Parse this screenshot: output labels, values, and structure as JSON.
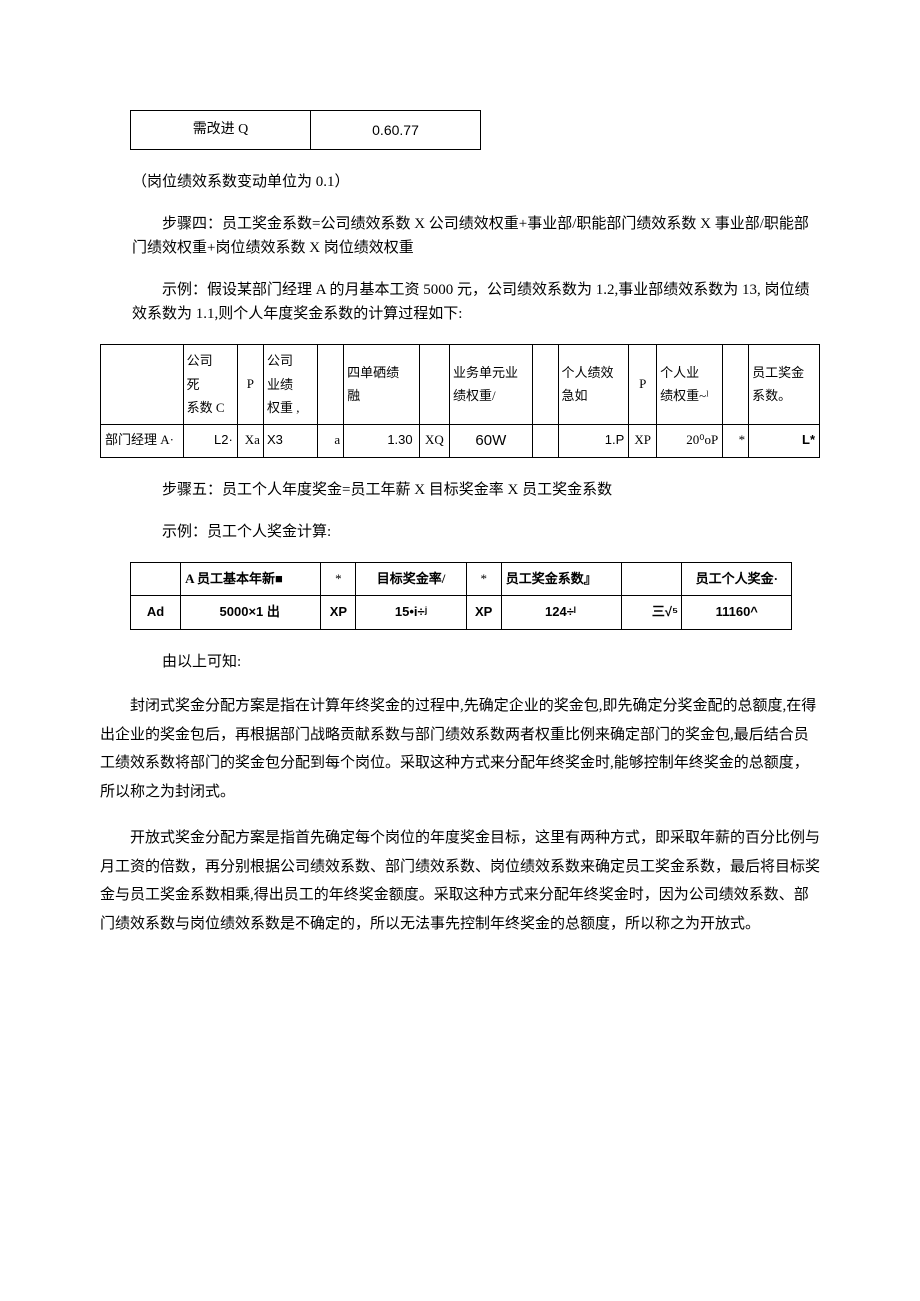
{
  "topTable": {
    "col1": "需改进 Q",
    "col2": "0.60.77"
  },
  "paragraphs": {
    "p1": "（岗位绩效系数变动单位为 0.1）",
    "p2": "步骤四：员工奖金系数=公司绩效系数 X 公司绩效权重+事业部/职能部门绩效系数 X 事业部/职能部门绩效权重+岗位绩效系数 X 岗位绩效权重",
    "p3": "示例：假设某部门经理 A 的月基本工资 5000 元，公司绩效系数为 1.2,事业部绩效系数为 13, 岗位绩效系数为 1.1,则个人年度奖金系数的计算过程如下:",
    "p4": "步骤五：员工个人年度奖金=员工年薪 X 目标奖金率 X 员工奖金系数",
    "p5": "示例：员工个人奖金计算:",
    "p6": "由以上可知:",
    "p7": "封闭式奖金分配方案是指在计算年终奖金的过程中,先确定企业的奖金包,即先确定分奖金配的总额度,在得出企业的奖金包后，再根据部门战略贡献系数与部门绩效系数两者权重比例来确定部门的奖金包,最后结合员工绩效系数将部门的奖金包分配到每个岗位。采取这种方式来分配年终奖金时,能够控制年终奖金的总额度，所以称之为封闭式。",
    "p8": "开放式奖金分配方案是指首先确定每个岗位的年度奖金目标，这里有两种方式，即采取年薪的百分比例与月工资的倍数，再分别根据公司绩效系数、部门绩效系数、岗位绩效系数来确定员工奖金系数，最后将目标奖金与员工奖金系数相乘,得出员工的年终奖金额度。采取这种方式来分配年终奖金时，因为公司绩效系数、部门绩效系数与岗位绩效系数是不确定的，所以无法事先控制年终奖金的总额度，所以称之为开放式。"
  },
  "calcTable": {
    "header": {
      "c1": "",
      "c2": "公司\n死\n系数 C",
      "c3": "P",
      "c4": "公司\n业绩\n权重 ,",
      "c5": "",
      "c6": "四单硒绩\n融",
      "c7": "",
      "c8": "业务单元业\n绩权重/",
      "c9": "",
      "c10": "个人绩效\n急如",
      "c11": "P",
      "c12": "个人业\n绩权重~ˡ",
      "c13": "",
      "c14": "员工奖金\n系数。"
    },
    "row": {
      "c1": "部门经理 A·",
      "c2": "L2·",
      "c3": "Xa",
      "c4": "X3",
      "c5": "a",
      "c6": "1.30",
      "c7": "XQ",
      "c8": "60W",
      "c9": "",
      "c10": "1.P",
      "c11": "XP",
      "c12": "20⁰oP",
      "c13": "*",
      "c14": "L*"
    }
  },
  "bonusTable": {
    "header": {
      "c0": "",
      "c1": "A 员工基本年新■",
      "n1": "*",
      "c2": "目标奖金率/",
      "n2": "*",
      "c3": "员工奖金系数』",
      "c4": "",
      "c5": "员工个人奖金·"
    },
    "row": {
      "c0": "Ad",
      "c1": "5000×1 出",
      "n1": "XP",
      "c2": "15•i÷ʲ",
      "n2": "XP",
      "c3": "124÷ˡ",
      "c4": "三√⁵",
      "c5": "11160^"
    }
  }
}
